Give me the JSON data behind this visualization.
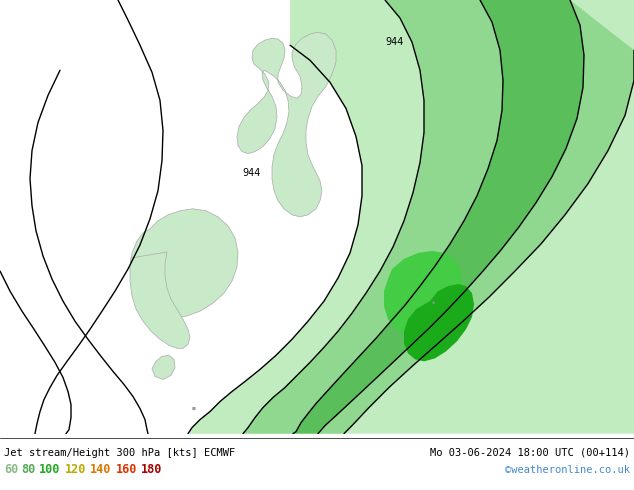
{
  "title_left": "Jet stream/Height 300 hPa [kts] ECMWF",
  "title_right": "Mo 03-06-2024 18:00 UTC (00+114)",
  "credit": "©weatheronline.co.uk",
  "legend_values": [
    "60",
    "80",
    "100",
    "120",
    "140",
    "160",
    "180"
  ],
  "legend_label_colors": [
    "#88bb88",
    "#55aa55",
    "#22aa22",
    "#bbaa00",
    "#dd7700",
    "#dd3300",
    "#aa0000"
  ],
  "fig_bg": "#e0e0e0",
  "map_bg": "#e0e0e0",
  "land_fill": "#c8eac8",
  "land_edge": "#aaaaaa",
  "figsize": [
    6.34,
    4.9
  ],
  "dpi": 100,
  "band_colors": [
    "#c8eec8",
    "#a8dca8",
    "#6cc86c",
    "#33aa33",
    "#22991e"
  ],
  "contour_lw": 1.0
}
